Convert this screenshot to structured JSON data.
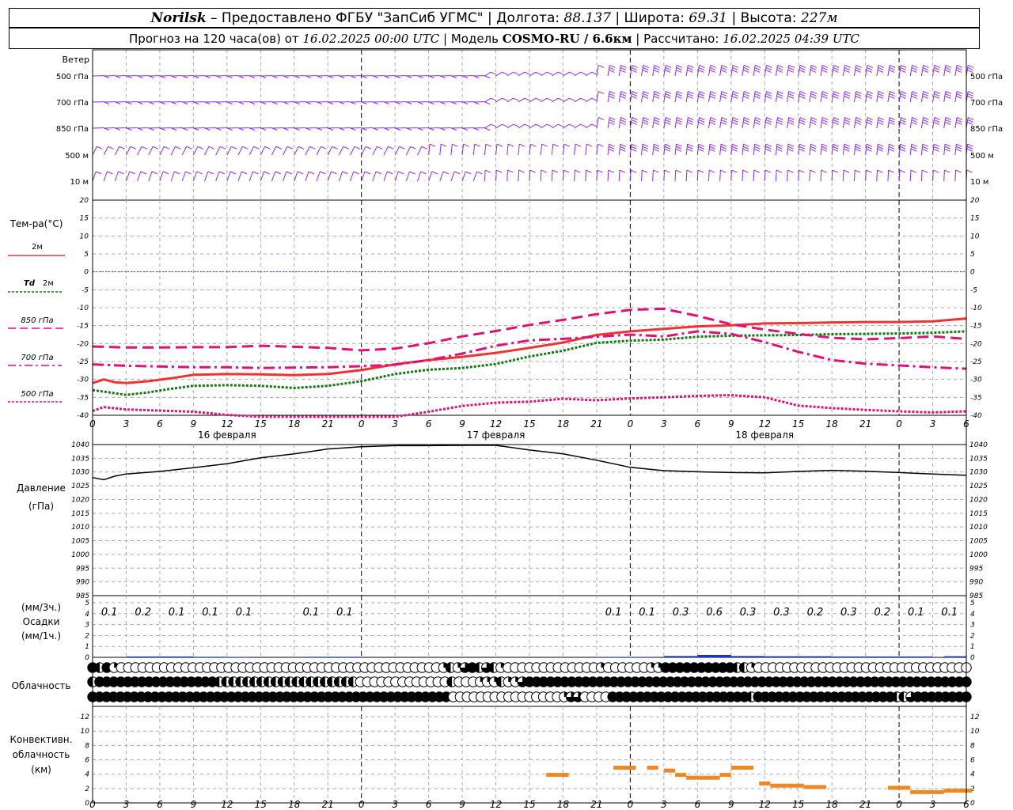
{
  "header": {
    "station": "Norilsk",
    "provider": "– Предоставлено ФГБУ \"ЗапСиб УГМС\" |",
    "lon_label": "Долгота:",
    "lon_value": "88.137",
    "lat_label": "| Широта:",
    "lat_value": "69.31",
    "alt_label": "| Высота:",
    "alt_value": "227м",
    "forecast_label": "Прогноз на 120 часа(ов) от",
    "forecast_start": "16.02.2025 00:00 UTC",
    "model_label": "| Модель",
    "model_name": "COSMO-RU / 6.6км",
    "computed_label": "| Рассчитано:",
    "computed_time": "16.02.2025 04:39 UTC"
  },
  "colors": {
    "wind": "#8a2be2",
    "t2m": "#ee3333",
    "td2m": "#117711",
    "t850": "#dd1177",
    "t700": "#dd1177",
    "t500": "#dd1177",
    "pressure": "#000000",
    "precip": "#1133dd",
    "convective": "#ee8822",
    "zero_line": "#3344ff"
  },
  "chart_data": [
    {
      "type": "wind-barbs",
      "title": "Ветер",
      "levels": [
        "500 гПа",
        "700 гПа",
        "850 гПа",
        "500 м",
        "10 м"
      ]
    },
    {
      "type": "line",
      "title": "Тем-ра(°С)",
      "ylim": [
        -40,
        20
      ],
      "yticks": [
        20,
        15,
        10,
        5,
        0,
        -5,
        -10,
        -15,
        -20,
        -25,
        -30,
        -35,
        -40
      ],
      "x_hours": [
        0,
        3,
        6,
        9,
        12,
        15,
        18,
        21,
        24,
        27,
        30,
        33,
        36,
        39,
        42,
        45,
        48,
        51,
        54,
        57,
        60,
        63,
        66,
        69,
        72,
        75,
        78
      ],
      "x_tick_labels": [
        "0",
        "3",
        "6",
        "9",
        "12",
        "15",
        "18",
        "21",
        "0",
        "3",
        "6",
        "9",
        "12",
        "15",
        "18",
        "21",
        "0",
        "3",
        "6",
        "9",
        "12",
        "15",
        "18",
        "21",
        "0",
        "3",
        "6"
      ],
      "date_labels": [
        "16 февраля",
        "17 февраля",
        "18 февраля"
      ],
      "series": [
        {
          "name": "2м",
          "style": "solid",
          "hours": [
            0,
            1,
            2,
            3,
            5,
            7,
            9,
            12,
            15,
            18,
            21,
            24,
            27,
            30,
            33,
            36,
            39,
            42,
            45,
            48,
            51,
            54,
            57,
            60,
            63,
            66,
            69,
            72,
            75,
            78
          ],
          "values": [
            -31,
            -30,
            -30.8,
            -31,
            -30.5,
            -29.7,
            -28.7,
            -28.5,
            -28.6,
            -28.8,
            -28.5,
            -27.4,
            -25.8,
            -24.6,
            -23.7,
            -22.6,
            -21.2,
            -19.7,
            -17.6,
            -16.6,
            -15.9,
            -15.2,
            -14.9,
            -14.4,
            -14.3,
            -14.1,
            -14.0,
            -14.0,
            -13.8,
            -13.0
          ]
        },
        {
          "name": "Td 2м",
          "style": "dotted",
          "hours": [
            0,
            1,
            3,
            5,
            7,
            9,
            12,
            15,
            18,
            21,
            24,
            27,
            30,
            33,
            36,
            39,
            42,
            45,
            48,
            51,
            54,
            57,
            60,
            63,
            66,
            69,
            72,
            75,
            78
          ],
          "values": [
            -33,
            -33.4,
            -34.3,
            -33.6,
            -32.6,
            -31.8,
            -31.6,
            -31.8,
            -32.4,
            -31.8,
            -30.5,
            -28.5,
            -27.3,
            -26.8,
            -25.7,
            -23.6,
            -22.0,
            -19.8,
            -19.2,
            -18.9,
            -18.1,
            -17.8,
            -17.7,
            -17.6,
            -17.4,
            -17.3,
            -17.2,
            -17.0,
            -16.6
          ]
        },
        {
          "name": "850 гПа",
          "style": "dashed",
          "hours": [
            0,
            3,
            6,
            9,
            12,
            15,
            18,
            21,
            24,
            27,
            30,
            33,
            36,
            39,
            42,
            45,
            48,
            51,
            54,
            57,
            60,
            63,
            66,
            69,
            72,
            75,
            78
          ],
          "values": [
            -20.8,
            -21.1,
            -21.1,
            -21.0,
            -21.0,
            -20.6,
            -20.9,
            -21.2,
            -21.9,
            -21.4,
            -19.9,
            -18.0,
            -16.5,
            -14.8,
            -13.4,
            -11.8,
            -10.6,
            -10.3,
            -12.3,
            -14.6,
            -16.1,
            -17.3,
            -18.4,
            -18.8,
            -18.5,
            -18.0,
            -18.7
          ]
        },
        {
          "name": "700 гПа",
          "style": "dashdot",
          "hours": [
            0,
            3,
            6,
            9,
            12,
            15,
            18,
            21,
            24,
            27,
            30,
            33,
            36,
            39,
            42,
            45,
            48,
            51,
            54,
            57,
            60,
            63,
            66,
            69,
            72,
            75,
            78
          ],
          "values": [
            -25.8,
            -26.2,
            -26.4,
            -26.6,
            -26.6,
            -26.8,
            -26.7,
            -26.6,
            -26.3,
            -25.9,
            -24.6,
            -22.8,
            -20.6,
            -19.1,
            -18.7,
            -18.1,
            -17.5,
            -18.0,
            -16.6,
            -17.3,
            -19.6,
            -22.3,
            -24.6,
            -25.6,
            -26.1,
            -26.6,
            -27.0
          ]
        },
        {
          "name": "500 гПа",
          "style": "dotted",
          "hours": [
            0,
            1,
            3,
            6,
            9,
            12,
            15,
            18,
            21,
            24,
            27,
            30,
            33,
            36,
            39,
            42,
            45,
            48,
            51,
            54,
            57,
            60,
            63,
            66,
            69,
            72,
            75,
            78
          ],
          "values": [
            -38.8,
            -37.7,
            -38.4,
            -38.7,
            -39.0,
            -39.9,
            -40.5,
            -41.1,
            -41.6,
            -41.7,
            -40.5,
            -39.0,
            -37.4,
            -36.5,
            -36.2,
            -35.4,
            -35.8,
            -35.3,
            -35.0,
            -34.6,
            -34.4,
            -35.0,
            -37.3,
            -38.0,
            -38.5,
            -38.9,
            -39.2,
            -38.9
          ]
        }
      ]
    },
    {
      "type": "line",
      "title": "Давление (гПа)",
      "ylim": [
        985,
        1040
      ],
      "yticks": [
        1040,
        1035,
        1030,
        1025,
        1020,
        1015,
        1010,
        1005,
        1000,
        995,
        990,
        985
      ],
      "series": [
        {
          "name": "",
          "hours": [
            0,
            1,
            2,
            3,
            6,
            9,
            12,
            15,
            18,
            21,
            24,
            27,
            30,
            33,
            36,
            39,
            42,
            45,
            48,
            51,
            54,
            57,
            60,
            63,
            66,
            69,
            72,
            75,
            78
          ],
          "values": [
            1028.0,
            1027.2,
            1028.5,
            1029.3,
            1030.2,
            1031.6,
            1033.0,
            1035.2,
            1036.6,
            1038.4,
            1039.2,
            1039.6,
            1039.6,
            1039.7,
            1039.7,
            1038.0,
            1036.6,
            1034.3,
            1031.7,
            1030.5,
            1030.1,
            1029.8,
            1029.7,
            1030.2,
            1030.6,
            1030.3,
            1029.8,
            1029.3,
            1028.8
          ]
        }
      ]
    },
    {
      "type": "bar",
      "title": "Осадки (мм/1ч.)",
      "subtitle": "(мм/3ч.)",
      "ylim": [
        0,
        5
      ],
      "yticks": [
        5,
        4,
        3,
        2,
        1,
        0
      ],
      "labels_3h": [
        {
          "hour": 1.5,
          "text": "0.1"
        },
        {
          "hour": 4.5,
          "text": "0.2"
        },
        {
          "hour": 7.5,
          "text": "0.1"
        },
        {
          "hour": 10.5,
          "text": "0.1"
        },
        {
          "hour": 13.5,
          "text": "0.1"
        },
        {
          "hour": 19.5,
          "text": "0.1"
        },
        {
          "hour": 22.5,
          "text": "0.1"
        },
        {
          "hour": 46.5,
          "text": "0.1"
        },
        {
          "hour": 49.5,
          "text": "0.1"
        },
        {
          "hour": 52.5,
          "text": "0.3"
        },
        {
          "hour": 55.5,
          "text": "0.6"
        },
        {
          "hour": 58.5,
          "text": "0.3"
        },
        {
          "hour": 61.5,
          "text": "0.3"
        },
        {
          "hour": 64.5,
          "text": "0.2"
        },
        {
          "hour": 67.5,
          "text": "0.3"
        },
        {
          "hour": 70.5,
          "text": "0.2"
        },
        {
          "hour": 73.5,
          "text": "0.1"
        },
        {
          "hour": 76.5,
          "text": "0.1"
        }
      ],
      "hourly": [
        {
          "from": 3,
          "to": 9,
          "value": 0.08
        },
        {
          "from": 9,
          "to": 12,
          "value": 0.05
        },
        {
          "from": 12,
          "to": 14,
          "value": 0.04
        },
        {
          "from": 19,
          "to": 24,
          "value": 0.05
        },
        {
          "from": 45,
          "to": 50,
          "value": 0.04
        },
        {
          "from": 51,
          "to": 54,
          "value": 0.12
        },
        {
          "from": 54,
          "to": 57,
          "value": 0.22
        },
        {
          "from": 57,
          "to": 60,
          "value": 0.12
        },
        {
          "from": 60,
          "to": 66,
          "value": 0.1
        },
        {
          "from": 66,
          "to": 75,
          "value": 0.08
        },
        {
          "from": 76,
          "to": 78,
          "value": 0.1
        }
      ]
    },
    {
      "type": "symbols",
      "title": "Облачность",
      "rows": [
        "FHFQEEEEEEEEEEEEEEEEEEEEEEEEEEEEEEEEEEEEEEEEEEEEEQHQTFHTHQEEEEEEEEEEEEEQEEEEEEQQFFFFFFFFFFHHQEEEEEEEEEEEEEEEEEEEEEEEEEEEEEE",
        "HFFFFFFFFFFFFFFFFFHHHHHHHHHHHHHHHHHHHHEEEEEEEEEEEEEHEEEQQQHQQTFFFFFFFFFFFFFFFFFFFFFFFFFFFFFFFFFFFFFFFFFFFFFFFFFFFFFFFFFFFFFFF",
        "FFFFFFFFFFFFFFFFFFFFFFFFFFFFFFFFFFFFFFFFFFFFFFFFFFFFEEEEEEEEEEEEEEEEQTTEEEEFFFFFFFFFFFFFFFFFFFFHFFFFFFFFFFFFFFFFFFFFHHTFFFFFFFF"
      ]
    },
    {
      "type": "bar",
      "title": "Конвективн. облачность (км)",
      "ylim": [
        0,
        13
      ],
      "yticks": [
        12,
        10,
        8,
        6,
        4,
        2,
        0
      ],
      "segments": [
        {
          "from": 40.5,
          "to": 42.5,
          "value": 3.9
        },
        {
          "from": 46.5,
          "to": 48.5,
          "value": 4.9
        },
        {
          "from": 49.5,
          "to": 50.5,
          "value": 4.9
        },
        {
          "from": 51,
          "to": 52,
          "value": 4.5
        },
        {
          "from": 52,
          "to": 53,
          "value": 3.9
        },
        {
          "from": 53,
          "to": 56,
          "value": 3.5
        },
        {
          "from": 56,
          "to": 57,
          "value": 3.9
        },
        {
          "from": 57,
          "to": 59,
          "value": 4.9
        },
        {
          "from": 59.5,
          "to": 60.5,
          "value": 2.7
        },
        {
          "from": 60.5,
          "to": 63.5,
          "value": 2.4
        },
        {
          "from": 63.5,
          "to": 65.5,
          "value": 2.2
        },
        {
          "from": 71,
          "to": 73,
          "value": 2.1
        },
        {
          "from": 73,
          "to": 76,
          "value": 1.5
        },
        {
          "from": 76,
          "to": 78.5,
          "value": 1.7
        }
      ]
    }
  ],
  "legend": {
    "t2m": "2м",
    "td_symbol": "Td",
    "td_level": "2м",
    "t850": "850 гПа",
    "t700": "700 гПа",
    "t500": "500 гПа"
  }
}
